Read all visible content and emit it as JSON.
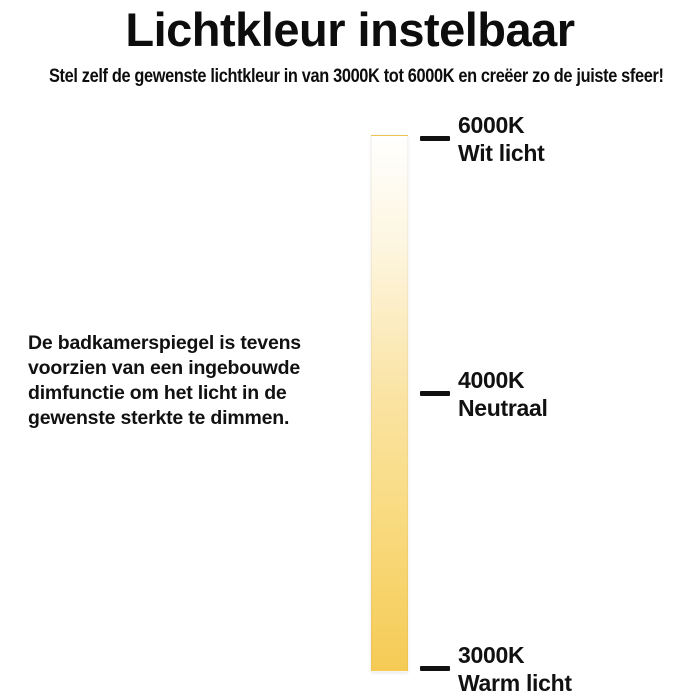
{
  "page": {
    "title": "Lichtkleur instelbaar",
    "subtitle": "Stel zelf de gewenste lichtkleur in van 3000K tot 6000K en creëer zo de juiste sfeer!"
  },
  "description": "De badkamerspiegel is tevens\nvoorzien van een ingebouwde\ndimfunctie om het licht in de\ngewenste sterkte te dimmen.",
  "scale": {
    "min_kelvin": "3000K",
    "max_kelvin": "6000K",
    "stops": [
      {
        "kelvin": "6000K",
        "name": "Wit licht"
      },
      {
        "kelvin": "4000K",
        "name": "Neutraal"
      },
      {
        "kelvin": "3000K",
        "name": "Warm licht"
      }
    ],
    "gradient": [
      {
        "color": "#ffffff",
        "pos": "0%"
      },
      {
        "color": "#fdf5df",
        "pos": "21%"
      },
      {
        "color": "#fae3a2",
        "pos": "49%"
      },
      {
        "color": "#f9dc85",
        "pos": "68%"
      },
      {
        "color": "#f5cb55",
        "pos": "100%"
      }
    ]
  }
}
